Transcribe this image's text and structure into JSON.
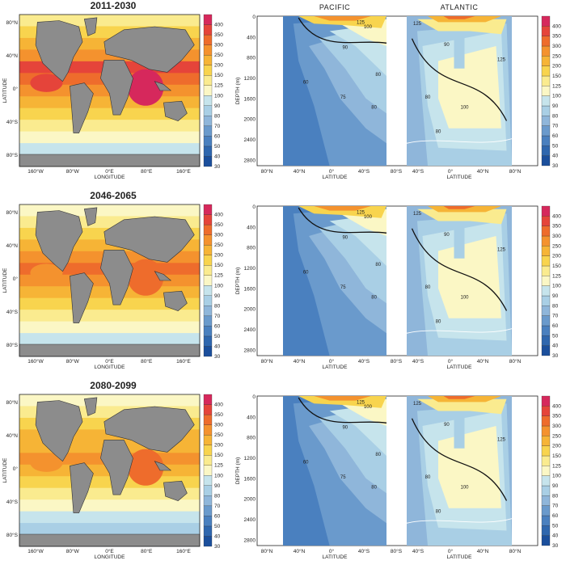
{
  "rows": [
    {
      "title": "2011-2030"
    },
    {
      "title": "2046-2065"
    },
    {
      "title": "2080-2099"
    }
  ],
  "ocean_titles": {
    "pacific": "PACIFIC",
    "atlantic": "ATLANTIC"
  },
  "map_axes": {
    "ylabel": "LATITUDE",
    "xlabel": "LONGITUDE",
    "yticks": [
      "80°N",
      "40°N",
      "0°",
      "40°S",
      "80°S"
    ],
    "xticks": [
      "160°W",
      "80°W",
      "0°E",
      "80°E",
      "160°E"
    ]
  },
  "section_axes": {
    "ylabel": "DEPTH (m)",
    "xlabel": "LATITUDE",
    "yticks": [
      "0",
      "400",
      "800",
      "1200",
      "1600",
      "2000",
      "2400",
      "2800"
    ],
    "pac_xticks": [
      "80°N",
      "40°N",
      "0°",
      "40°S",
      "80°S"
    ],
    "atl_xticks": [
      "40°S",
      "0°",
      "40°N",
      "80°N"
    ]
  },
  "colorbar": {
    "levels": [
      "30",
      "40",
      "50",
      "60",
      "70",
      "80",
      "90",
      "100",
      "125",
      "150",
      "200",
      "250",
      "300",
      "350",
      "400"
    ],
    "colors": [
      "#1b4f9c",
      "#2f67ae",
      "#4a80bf",
      "#6a9acc",
      "#8fb6da",
      "#a9cfe5",
      "#c6e4ec",
      "#fbf7c5",
      "#faeb8f",
      "#f8d44e",
      "#f6b436",
      "#f4922e",
      "#ee6c2c",
      "#e5443a",
      "#d6285c"
    ]
  },
  "contour_labels": {
    "pacific": [
      "100",
      "90",
      "60",
      "80",
      "75",
      "80",
      "125"
    ],
    "atlantic": [
      "125",
      "90",
      "100",
      "80",
      "125",
      "80"
    ]
  }
}
